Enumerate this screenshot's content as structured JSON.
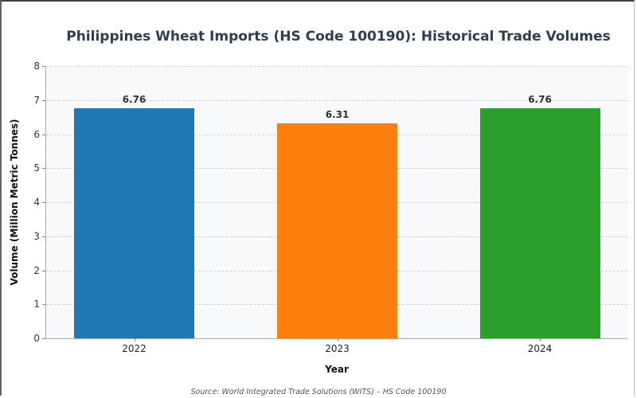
{
  "chart": {
    "title": "Philippines Wheat Imports (HS Code 100190): Historical Trade Volumes",
    "xlabel": "Year",
    "ylabel": "Volume (Million Metric Tonnes)",
    "source": "Source: World Integrated Trade Solutions (WITS) – HS Code 100190",
    "yticks": [
      "0",
      "1",
      "2",
      "3",
      "4",
      "5",
      "6",
      "7",
      "8"
    ],
    "bars": [
      {
        "year": "2022",
        "value": 6.76,
        "label": "6.76",
        "color": "#1f77b4"
      },
      {
        "year": "2023",
        "value": 6.31,
        "label": "6.31",
        "color": "#ff7f0e"
      },
      {
        "year": "2024",
        "value": 6.76,
        "label": "6.76",
        "color": "#2ca02c"
      }
    ]
  },
  "chart_data": {
    "type": "bar",
    "title": "Philippines Wheat Imports (HS Code 100190): Historical Trade Volumes",
    "categories": [
      "2022",
      "2023",
      "2024"
    ],
    "values": [
      6.76,
      6.31,
      6.76
    ],
    "colors": [
      "#1f77b4",
      "#ff7f0e",
      "#2ca02c"
    ],
    "xlabel": "Year",
    "ylabel": "Volume (Million Metric Tonnes)",
    "ylim": [
      0,
      8
    ],
    "yticks": [
      0,
      1,
      2,
      3,
      4,
      5,
      6,
      7,
      8
    ],
    "grid": true,
    "data_labels": true,
    "annotation": "Source: World Integrated Trade Solutions (WITS) – HS Code 100190"
  }
}
